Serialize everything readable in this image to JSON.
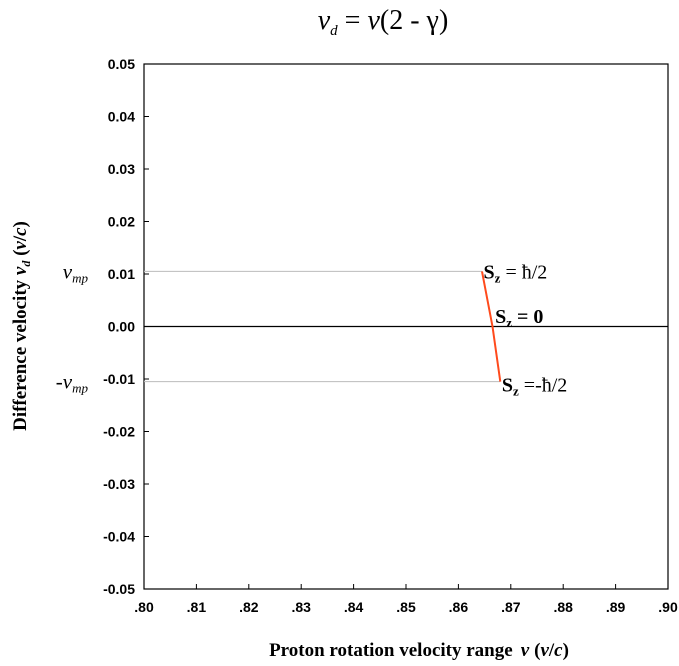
{
  "chart_data": {
    "type": "line",
    "title": "v_d = v(2 - γ)",
    "title_parts": {
      "lhs": "v",
      "lhs_sub": "d",
      "eq": " = ",
      "rhs_var": "v",
      "rhs_open": "(",
      "rhs_expr": "2 - γ",
      "rhs_close": ")"
    },
    "xlabel": "Proton rotation velocity range  v (v/c)",
    "xlabel_parts": {
      "main": "Proton rotation velocity range",
      "var": "v",
      "unit_open": "(",
      "unit_num": "v",
      "unit_slash": "/",
      "unit_den": "c",
      "unit_close": ")"
    },
    "ylabel": "Difference velocity v_d (v/c)",
    "ylabel_parts": {
      "main": "Difference velocity ",
      "var": "v",
      "sub": "d",
      "unit_open": " (",
      "unit_num": "v",
      "unit_slash": "/",
      "unit_den": "c",
      "unit_close": ")"
    },
    "xlim": [
      0.8,
      0.9
    ],
    "ylim": [
      -0.05,
      0.05
    ],
    "x_ticks": [
      0.8,
      0.81,
      0.82,
      0.83,
      0.84,
      0.85,
      0.86,
      0.87,
      0.88,
      0.89,
      0.9
    ],
    "x_tick_labels": [
      ".80",
      ".81",
      ".82",
      ".83",
      ".84",
      ".85",
      ".86",
      ".87",
      ".88",
      ".89",
      ".90"
    ],
    "y_ticks": [
      0.05,
      0.04,
      0.03,
      0.02,
      0.01,
      0.0,
      -0.01,
      -0.02,
      -0.03,
      -0.04,
      -0.05
    ],
    "y_tick_labels": [
      "0.05",
      "0.04",
      "0.03",
      "0.02",
      "0.01",
      "0.00",
      "-0.01",
      "-0.02",
      "-0.03",
      "-0.04",
      "-0.05"
    ],
    "grid": false,
    "series": [
      {
        "color": "#ff4a1c",
        "x": [
          0.8645,
          0.8665,
          0.868
        ],
        "y": [
          0.0105,
          0.0,
          -0.0105
        ]
      }
    ],
    "reference_lines": [
      {
        "y": 0.0105,
        "x_end": 0.8645,
        "color": "#bbbbbb"
      },
      {
        "y": 0.0,
        "x_end": 0.9,
        "color": "#000000"
      },
      {
        "y": -0.0105,
        "x_end": 0.868,
        "color": "#bbbbbb"
      }
    ],
    "side_labels": [
      {
        "text": "v",
        "sub": "mp",
        "y": 0.0105,
        "prefix": ""
      },
      {
        "text": "v",
        "sub": "mp",
        "y": -0.0105,
        "prefix": "-"
      }
    ],
    "annotations": [
      {
        "S": "S",
        "sub": "z",
        "rest": " = ħ/2",
        "x": 0.8648,
        "y": 0.0105
      },
      {
        "S": "S",
        "sub": "z",
        "rest": " = 0",
        "x": 0.867,
        "y": 0.002
      },
      {
        "S": "S",
        "sub": "z",
        "rest": " =-ħ/2",
        "x": 0.8683,
        "y": -0.011
      }
    ]
  }
}
